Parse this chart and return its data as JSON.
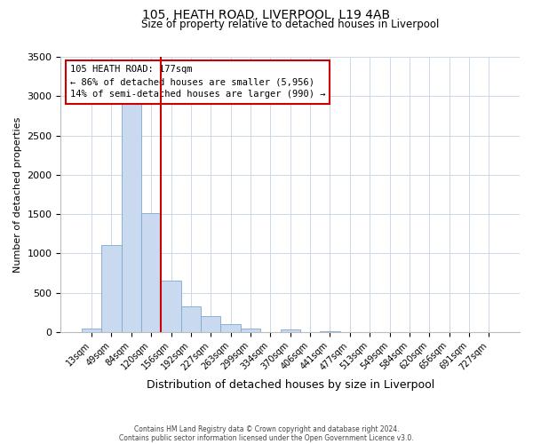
{
  "title": "105, HEATH ROAD, LIVERPOOL, L19 4AB",
  "subtitle": "Size of property relative to detached houses in Liverpool",
  "xlabel": "Distribution of detached houses by size in Liverpool",
  "ylabel": "Number of detached properties",
  "bar_labels": [
    "13sqm",
    "49sqm",
    "84sqm",
    "120sqm",
    "156sqm",
    "192sqm",
    "227sqm",
    "263sqm",
    "299sqm",
    "334sqm",
    "370sqm",
    "406sqm",
    "441sqm",
    "477sqm",
    "513sqm",
    "549sqm",
    "584sqm",
    "620sqm",
    "656sqm",
    "691sqm",
    "727sqm"
  ],
  "bar_values": [
    50,
    1110,
    2920,
    1510,
    650,
    325,
    200,
    100,
    50,
    0,
    30,
    0,
    10,
    0,
    0,
    0,
    0,
    0,
    0,
    0,
    0
  ],
  "bar_color": "#c9d9f0",
  "bar_edge_color": "#7fa8cc",
  "property_line_color": "#cc0000",
  "property_line_index": 3.5,
  "annotation_title": "105 HEATH ROAD: 177sqm",
  "annotation_line2": "← 86% of detached houses are smaller (5,956)",
  "annotation_line3": "14% of semi-detached houses are larger (990) →",
  "annotation_box_color": "#ffffff",
  "annotation_border_color": "#cc0000",
  "ylim": [
    0,
    3500
  ],
  "yticks": [
    0,
    500,
    1000,
    1500,
    2000,
    2500,
    3000,
    3500
  ],
  "footer_line1": "Contains HM Land Registry data © Crown copyright and database right 2024.",
  "footer_line2": "Contains public sector information licensed under the Open Government Licence v3.0.",
  "background_color": "#ffffff",
  "grid_color": "#cdd8e8",
  "title_fontsize": 10,
  "subtitle_fontsize": 8.5,
  "ylabel_fontsize": 8,
  "xlabel_fontsize": 9
}
